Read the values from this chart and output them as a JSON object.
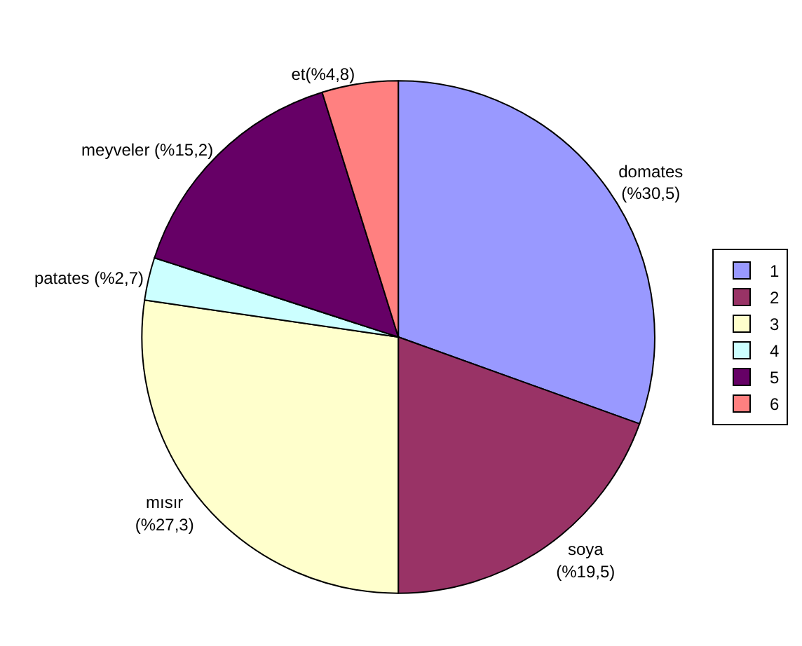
{
  "chart_data": {
    "type": "pie",
    "categories": [
      "1",
      "2",
      "3",
      "4",
      "5",
      "6"
    ],
    "values": [
      30.5,
      19.5,
      27.3,
      2.7,
      15.2,
      4.8
    ],
    "colors": [
      "#9999ff",
      "#993366",
      "#ffffcc",
      "#ccffff",
      "#660066",
      "#ff8080"
    ],
    "value_labels": [
      "domates\n(%30,5)",
      "soya\n(%19,5)",
      "mısır\n(%27,3)",
      "patates (%2,7)",
      "meyveler (%15,2)",
      "et(%4,8)"
    ],
    "legend": "right"
  }
}
